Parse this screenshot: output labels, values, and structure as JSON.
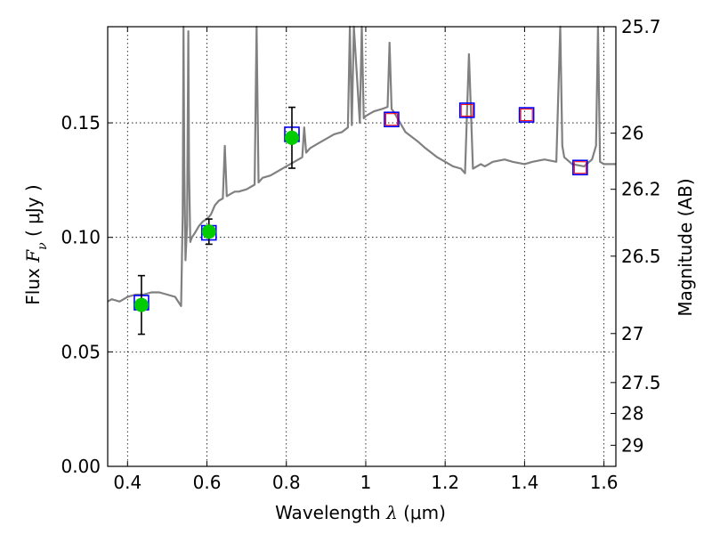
{
  "chart_data": {
    "type": "scatter",
    "xlabel": "Wavelength  λ (μm)",
    "ylabel": "Flux  F_ν  ( μJy )",
    "y2label": "Magnitude (AB)",
    "xlim": [
      0.35,
      1.63
    ],
    "ylim": [
      0.0,
      0.192
    ],
    "grid": true,
    "x_ticks": [
      0.4,
      0.6,
      0.8,
      1.0,
      1.2,
      1.4,
      1.6
    ],
    "x_tick_labels": [
      "0.4",
      "0.6",
      "0.8",
      "1",
      "1.2",
      "1.4",
      "1.6"
    ],
    "y_ticks": [
      0.0,
      0.05,
      0.1,
      0.15
    ],
    "y_tick_labels": [
      "0.00",
      "0.05",
      "0.10",
      "0.15"
    ],
    "mag_ticks": [
      {
        "label": "25.7",
        "flux": 0.192
      },
      {
        "label": "26",
        "flux": 0.1455
      },
      {
        "label": "26.2",
        "flux": 0.121
      },
      {
        "label": "26.5",
        "flux": 0.0918
      },
      {
        "label": "27",
        "flux": 0.058
      },
      {
        "label": "27.5",
        "flux": 0.0366
      },
      {
        "label": "28",
        "flux": 0.0231
      },
      {
        "label": "29",
        "flux": 0.0092
      }
    ],
    "observed_points": {
      "color": "#00cc00",
      "x": [
        0.435,
        0.605,
        0.814
      ],
      "y": [
        0.0705,
        0.1025,
        0.1435
      ],
      "yerr": [
        0.0128,
        0.0055,
        0.0133
      ]
    },
    "model_squares": {
      "color": "#0000ff",
      "x": [
        0.435,
        0.605,
        0.814,
        1.065,
        1.255,
        1.405,
        1.54
      ],
      "y": [
        0.0715,
        0.102,
        0.145,
        0.1515,
        0.1555,
        0.1535,
        0.1305
      ]
    },
    "upper_limit_squares": {
      "color": "#ff0000",
      "x": [
        1.065,
        1.255,
        1.405,
        1.54
      ],
      "y": [
        0.1515,
        0.1555,
        0.1535,
        0.1305
      ]
    },
    "sed_model": {
      "color": "#808080",
      "x": [
        0.35,
        0.36,
        0.38,
        0.4,
        0.42,
        0.44,
        0.46,
        0.48,
        0.5,
        0.52,
        0.535,
        0.539,
        0.541,
        0.543,
        0.546,
        0.55,
        0.553,
        0.555,
        0.558,
        0.562,
        0.57,
        0.58,
        0.59,
        0.6,
        0.61,
        0.62,
        0.63,
        0.64,
        0.645,
        0.65,
        0.66,
        0.67,
        0.68,
        0.7,
        0.72,
        0.725,
        0.73,
        0.74,
        0.76,
        0.78,
        0.8,
        0.82,
        0.84,
        0.845,
        0.85,
        0.86,
        0.88,
        0.9,
        0.92,
        0.94,
        0.955,
        0.96,
        0.965,
        0.97,
        0.985,
        0.99,
        0.995,
        1.0,
        1.02,
        1.04,
        1.055,
        1.06,
        1.065,
        1.07,
        1.1,
        1.13,
        1.15,
        1.18,
        1.2,
        1.22,
        1.24,
        1.25,
        1.26,
        1.27,
        1.29,
        1.3,
        1.32,
        1.35,
        1.37,
        1.4,
        1.42,
        1.45,
        1.48,
        1.49,
        1.495,
        1.5,
        1.52,
        1.55,
        1.57,
        1.58,
        1.585,
        1.59,
        1.6,
        1.63
      ],
      "y": [
        0.072,
        0.073,
        0.072,
        0.074,
        0.075,
        0.075,
        0.076,
        0.076,
        0.075,
        0.074,
        0.07,
        0.11,
        0.192,
        0.13,
        0.09,
        0.105,
        0.19,
        0.13,
        0.098,
        0.1,
        0.102,
        0.105,
        0.107,
        0.108,
        0.11,
        0.114,
        0.116,
        0.117,
        0.14,
        0.118,
        0.119,
        0.12,
        0.12,
        0.121,
        0.123,
        0.192,
        0.124,
        0.126,
        0.127,
        0.129,
        0.131,
        0.133,
        0.135,
        0.148,
        0.137,
        0.139,
        0.141,
        0.143,
        0.145,
        0.146,
        0.148,
        0.192,
        0.149,
        0.192,
        0.15,
        0.192,
        0.152,
        0.153,
        0.155,
        0.156,
        0.157,
        0.185,
        0.156,
        0.155,
        0.146,
        0.142,
        0.139,
        0.135,
        0.133,
        0.131,
        0.13,
        0.128,
        0.18,
        0.13,
        0.132,
        0.131,
        0.133,
        0.134,
        0.133,
        0.132,
        0.133,
        0.134,
        0.133,
        0.192,
        0.14,
        0.135,
        0.132,
        0.131,
        0.134,
        0.14,
        0.192,
        0.133,
        0.132,
        0.132
      ]
    }
  }
}
